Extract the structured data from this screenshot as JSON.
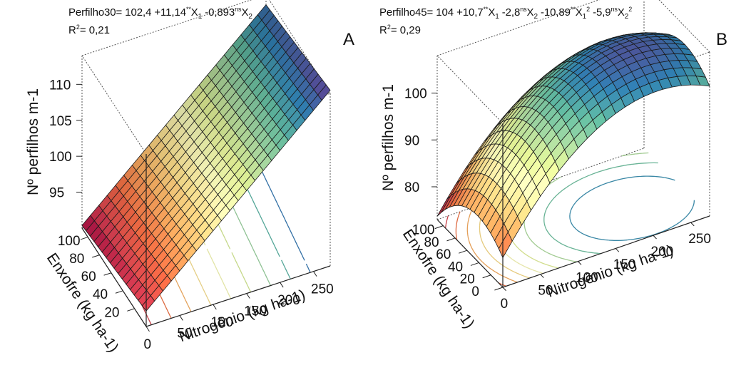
{
  "panels": [
    {
      "letter": "A",
      "eq": {
        "lhs": "Perfilho30",
        "c0": "= 102,4 +11,14",
        "s1": "**",
        "x1": "X",
        "x1sub": "1",
        "t2": " -0,893",
        "s2": "ns",
        "x2": "X",
        "x2sub": "2"
      },
      "r2": {
        "pre": "R",
        "sup": "2",
        "post": "= 0,21"
      }
    },
    {
      "letter": "B",
      "eq": {
        "lhs": "Perfilho45",
        "c0": "= 104 +10,7",
        "s1": "**",
        "x1": "X",
        "x1sub": "1",
        "t2": " -2,8",
        "s2": "ns",
        "x2": "X",
        "x2sub": "2",
        "t3": " -10,89",
        "s3": "**",
        "x3": "X",
        "x3sub": "1",
        "x3pow": "2",
        "t4": " -5,9",
        "s4": "ns",
        "x4": "X",
        "x4sub": "2",
        "x4pow": "2"
      },
      "r2": {
        "pre": "R",
        "sup": "2",
        "post": "= 0,29"
      }
    }
  ],
  "chart_data": [
    {
      "type": "surface",
      "panel_label": "A",
      "equation": "Perfilho30= 102,4 +11,14**X1 -0,893nsX2",
      "r_squared": "R2= 0,21",
      "x": {
        "label": "Nitrogênio (kg ha-1)",
        "ticks": [
          "0",
          "50",
          "100",
          "150",
          "200",
          "250"
        ],
        "range": [
          0,
          275
        ]
      },
      "y": {
        "label": "Enxofre (kg ha-1)",
        "ticks": [
          "20",
          "40",
          "60",
          "80",
          "100"
        ],
        "range": [
          0,
          110
        ]
      },
      "z": {
        "label": "Nº perfilhos m-1",
        "ticks": [
          "95",
          "100",
          "105",
          "110"
        ],
        "range": [
          90,
          114
        ]
      },
      "model": {
        "intercept": 102.4,
        "b1": 11.14,
        "b2": -0.893,
        "b11": 0,
        "b22": 0,
        "x1_coded": {
          "center": 137.5,
          "half_range": 137.5
        },
        "x2_coded": {
          "center": 55,
          "half_range": 55
        }
      },
      "colormap": "spectral",
      "contours_on_floor": true
    },
    {
      "type": "surface",
      "panel_label": "B",
      "equation": "Perfilho45= 104 +10,7**X1 -2,8nsX2 -10,89**X1^2 -5,9nsX2^2",
      "r_squared": "R2= 0,29",
      "x": {
        "label": "Nitrogênio (kg ha-1)",
        "ticks": [
          "0",
          "50",
          "100",
          "150",
          "200",
          "250"
        ],
        "range": [
          0,
          275
        ]
      },
      "y": {
        "label": "Enxofre (kg ha-1)",
        "ticks": [
          "0",
          "20",
          "40",
          "60",
          "80",
          "100"
        ],
        "range": [
          0,
          110
        ]
      },
      "z": {
        "label": "Nº perfilhos m-1",
        "ticks": [
          "80",
          "90",
          "100"
        ],
        "range": [
          73,
          108
        ]
      },
      "model": {
        "intercept": 104,
        "b1": 10.7,
        "b2": -2.8,
        "b11": -10.89,
        "b22": -5.9,
        "x1_coded": {
          "center": 137.5,
          "half_range": 137.5
        },
        "x2_coded": {
          "center": 55,
          "half_range": 55
        }
      },
      "colormap": "spectral",
      "contours_on_floor": true
    }
  ]
}
